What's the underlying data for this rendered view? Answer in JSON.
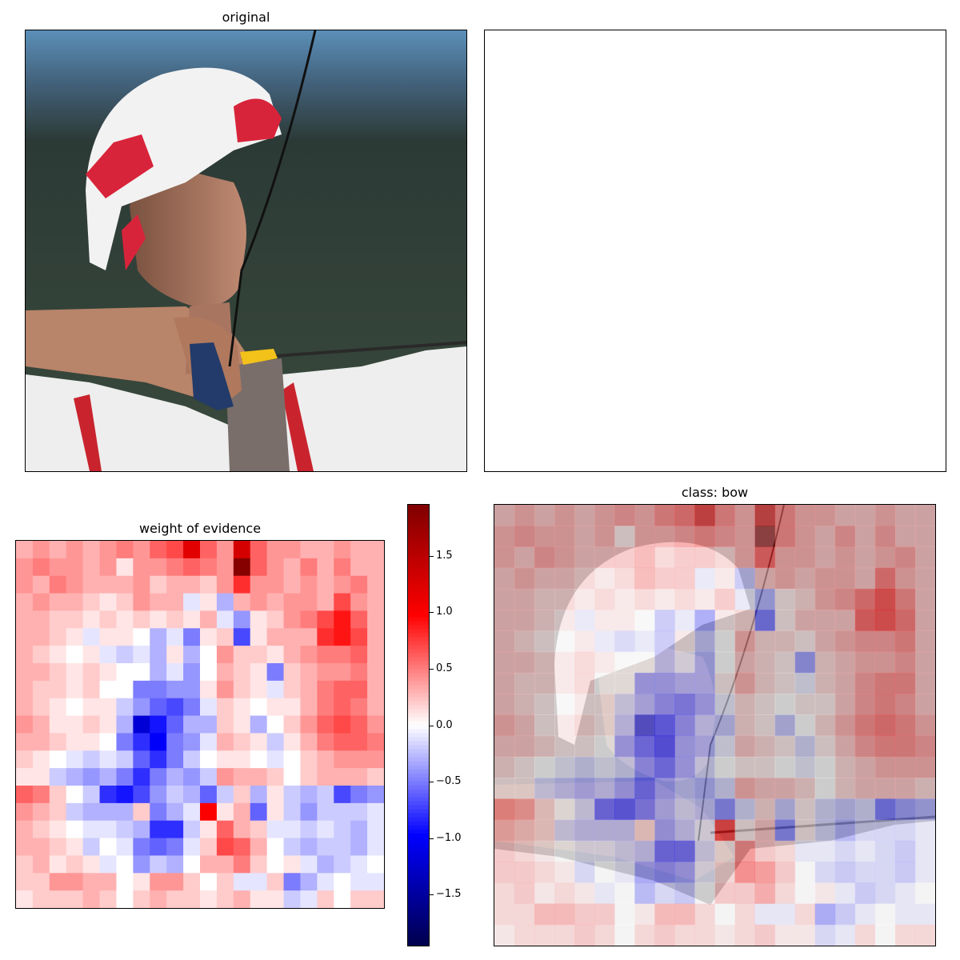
{
  "panels": {
    "original": {
      "title": "original"
    },
    "blank": {
      "title": ""
    },
    "evidence": {
      "title": "weight of evidence"
    },
    "overlay": {
      "title": "class: bow"
    }
  },
  "colorbar": {
    "colormap": "seismic",
    "range": [
      -1.95,
      1.95
    ],
    "ticks": [
      1.5,
      1.0,
      0.5,
      0.0,
      -0.5,
      -1.0,
      -1.5
    ],
    "tick_labels": [
      "1.5",
      "1.0",
      "0.5",
      "0.0",
      "−0.5",
      "−1.0",
      "−1.5"
    ]
  },
  "chart_data": [
    {
      "type": "heatmap",
      "title": "weight of evidence",
      "colormap": "seismic",
      "vmin": -1.95,
      "vmax": 1.95,
      "grid": false,
      "z": [
        [
          0.3,
          0.4,
          0.3,
          0.4,
          0.3,
          0.4,
          0.5,
          0.4,
          0.6,
          0.7,
          1.2,
          0.6,
          0.4,
          1.3,
          0.6,
          0.4,
          0.4,
          0.3,
          0.3,
          0.4,
          0.3,
          0.3
        ],
        [
          0.4,
          0.5,
          0.4,
          0.4,
          0.3,
          0.4,
          0.1,
          0.4,
          0.4,
          0.5,
          0.6,
          0.5,
          0.4,
          1.9,
          0.6,
          0.4,
          0.3,
          0.5,
          0.3,
          0.5,
          0.3,
          0.3
        ],
        [
          0.4,
          0.3,
          0.5,
          0.4,
          0.3,
          0.3,
          0.3,
          0.4,
          0.2,
          0.3,
          0.3,
          0.2,
          0.4,
          0.8,
          0.4,
          0.4,
          0.3,
          0.4,
          0.3,
          0.4,
          0.5,
          0.3
        ],
        [
          0.3,
          0.4,
          0.3,
          0.3,
          0.2,
          0.1,
          0.2,
          0.4,
          0.3,
          0.3,
          -0.1,
          0.1,
          -0.3,
          0.3,
          0.4,
          0.3,
          0.4,
          0.4,
          0.3,
          0.7,
          0.4,
          0.3
        ],
        [
          0.3,
          0.3,
          0.2,
          0.2,
          0.1,
          0.2,
          0.1,
          0.2,
          0.1,
          0.2,
          0.1,
          0.3,
          -0.1,
          -0.4,
          0.1,
          0.2,
          0.4,
          0.5,
          0.7,
          0.9,
          0.6,
          0.3
        ],
        [
          0.3,
          0.3,
          0.2,
          0.1,
          -0.1,
          0.1,
          0.1,
          0.0,
          -0.3,
          -0.1,
          -0.5,
          0.1,
          0.2,
          -0.7,
          0.1,
          0.3,
          0.3,
          0.3,
          0.8,
          0.9,
          0.7,
          0.3
        ],
        [
          0.3,
          0.2,
          0.1,
          0.0,
          0.1,
          -0.1,
          -0.2,
          -0.1,
          -0.3,
          0.1,
          -0.3,
          0.0,
          0.4,
          0.2,
          0.2,
          0.1,
          0.3,
          0.4,
          0.5,
          0.5,
          0.6,
          0.3
        ],
        [
          0.3,
          0.3,
          0.2,
          0.1,
          0.2,
          0.1,
          0.0,
          0.0,
          -0.3,
          -0.1,
          -0.4,
          0.0,
          0.3,
          0.2,
          0.1,
          -0.5,
          0.2,
          0.3,
          0.4,
          0.4,
          0.5,
          0.3
        ],
        [
          0.3,
          0.2,
          0.2,
          0.1,
          0.2,
          0.0,
          0.0,
          -0.5,
          -0.5,
          -0.4,
          -0.4,
          0.1,
          0.4,
          0.2,
          0.1,
          -0.1,
          0.2,
          0.3,
          0.5,
          0.6,
          0.6,
          0.3
        ],
        [
          0.3,
          0.2,
          0.1,
          0.0,
          0.1,
          0.1,
          -0.2,
          -0.4,
          -0.6,
          -0.7,
          -0.5,
          -0.1,
          0.2,
          0.1,
          0.0,
          0.1,
          0.1,
          0.3,
          0.5,
          0.6,
          0.5,
          0.3
        ],
        [
          0.4,
          0.3,
          0.1,
          0.1,
          0.2,
          0.1,
          -0.3,
          -1.2,
          -0.9,
          -0.6,
          -0.3,
          -0.3,
          0.2,
          0.1,
          -0.3,
          0.0,
          0.2,
          0.4,
          0.6,
          0.7,
          0.6,
          0.4
        ],
        [
          0.3,
          0.3,
          0.2,
          0.1,
          0.1,
          0.0,
          -0.5,
          -0.8,
          -1.0,
          -0.5,
          -0.4,
          -0.1,
          0.3,
          0.2,
          0.1,
          -0.2,
          0.1,
          0.3,
          0.5,
          0.6,
          0.6,
          0.5
        ],
        [
          0.2,
          0.1,
          0.0,
          -0.1,
          -0.2,
          -0.1,
          -0.2,
          -0.6,
          -0.8,
          -0.5,
          -0.2,
          0.0,
          0.1,
          0.1,
          0.0,
          -0.1,
          0.0,
          0.2,
          0.3,
          0.4,
          0.4,
          0.4
        ],
        [
          0.1,
          0.1,
          -0.2,
          -0.3,
          -0.4,
          -0.3,
          -0.5,
          -0.8,
          -0.5,
          -0.3,
          -0.4,
          -0.2,
          0.4,
          0.3,
          0.3,
          0.2,
          0.0,
          0.2,
          0.3,
          0.3,
          0.3,
          0.2
        ],
        [
          0.6,
          0.5,
          0.2,
          0.0,
          -0.2,
          -0.8,
          -0.9,
          -0.7,
          -0.4,
          -0.2,
          -0.3,
          -0.6,
          -0.2,
          0.2,
          -0.3,
          0.1,
          -0.2,
          -0.3,
          -0.2,
          -0.7,
          -0.5,
          -0.4
        ],
        [
          0.4,
          0.3,
          0.2,
          -0.2,
          -0.3,
          -0.3,
          -0.3,
          0.2,
          -0.5,
          -0.3,
          -0.1,
          1.0,
          0.1,
          0.3,
          -0.6,
          0.1,
          -0.2,
          -0.4,
          -0.2,
          -0.2,
          -0.2,
          -0.1
        ],
        [
          0.3,
          0.2,
          0.1,
          0.0,
          -0.1,
          -0.1,
          -0.2,
          -0.3,
          -0.8,
          -0.8,
          -0.2,
          0.1,
          0.6,
          0.3,
          0.2,
          -0.1,
          -0.1,
          -0.2,
          -0.1,
          -0.2,
          -0.3,
          -0.1
        ],
        [
          0.3,
          0.3,
          0.2,
          0.1,
          -0.2,
          0.0,
          -0.1,
          -0.5,
          -0.6,
          -0.5,
          -0.1,
          0.2,
          0.7,
          0.6,
          0.3,
          0.0,
          -0.2,
          -0.3,
          -0.2,
          -0.2,
          -0.3,
          -0.1
        ],
        [
          0.2,
          0.3,
          0.1,
          0.2,
          0.1,
          -0.1,
          0.0,
          -0.4,
          -0.2,
          -0.3,
          0.0,
          0.3,
          0.3,
          0.5,
          0.2,
          0.0,
          0.1,
          -0.1,
          -0.3,
          -0.2,
          -0.1,
          0.0
        ],
        [
          0.2,
          0.2,
          0.4,
          0.4,
          0.3,
          0.3,
          0.0,
          0.1,
          0.4,
          0.4,
          0.2,
          0.0,
          0.2,
          -0.1,
          -0.1,
          0.2,
          -0.5,
          -0.3,
          -0.1,
          0.0,
          -0.1,
          -0.1
        ],
        [
          0.1,
          0.2,
          0.2,
          0.2,
          0.3,
          0.2,
          0.0,
          0.2,
          0.3,
          0.2,
          0.2,
          0.1,
          0.2,
          0.3,
          0.1,
          0.1,
          -0.2,
          -0.1,
          0.2,
          0.0,
          0.2,
          0.2
        ]
      ]
    }
  ]
}
